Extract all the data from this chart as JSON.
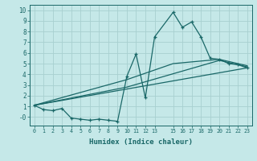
{
  "xlabel": "Humidex (Indice chaleur)",
  "bg_color": "#c5e8e8",
  "grid_color": "#a8d0d0",
  "line_color": "#1a6868",
  "xlim": [
    -0.5,
    23.5
  ],
  "ylim": [
    -0.8,
    10.5
  ],
  "xticks": [
    0,
    1,
    2,
    3,
    4,
    5,
    6,
    7,
    8,
    9,
    10,
    11,
    12,
    13,
    15,
    16,
    17,
    18,
    19,
    20,
    21,
    22,
    23
  ],
  "yticks": [
    0,
    1,
    2,
    3,
    4,
    5,
    6,
    7,
    8,
    9,
    10
  ],
  "ytick_labels": [
    "-0",
    "1",
    "2",
    "3",
    "4",
    "5",
    "6",
    "7",
    "8",
    "9",
    "10"
  ],
  "line1_x": [
    0,
    1,
    2,
    3,
    4,
    5,
    6,
    7,
    8,
    9,
    10,
    11,
    12,
    13,
    15,
    16,
    17,
    18,
    19,
    20,
    21,
    22,
    23
  ],
  "line1_y": [
    1.1,
    0.7,
    0.6,
    0.8,
    -0.1,
    -0.2,
    -0.3,
    -0.2,
    -0.3,
    -0.4,
    3.8,
    5.9,
    1.8,
    7.5,
    9.8,
    8.4,
    8.9,
    7.5,
    5.5,
    5.4,
    5.0,
    4.9,
    4.6
  ],
  "line2_x": [
    0,
    23
  ],
  "line2_y": [
    1.1,
    4.6
  ],
  "line3_x": [
    0,
    10,
    20,
    23
  ],
  "line3_y": [
    1.1,
    2.8,
    5.3,
    4.7
  ],
  "line4_x": [
    0,
    10,
    15,
    20,
    23
  ],
  "line4_y": [
    1.1,
    3.5,
    5.0,
    5.4,
    4.8
  ],
  "figsize": [
    3.2,
    2.0
  ],
  "dpi": 100
}
